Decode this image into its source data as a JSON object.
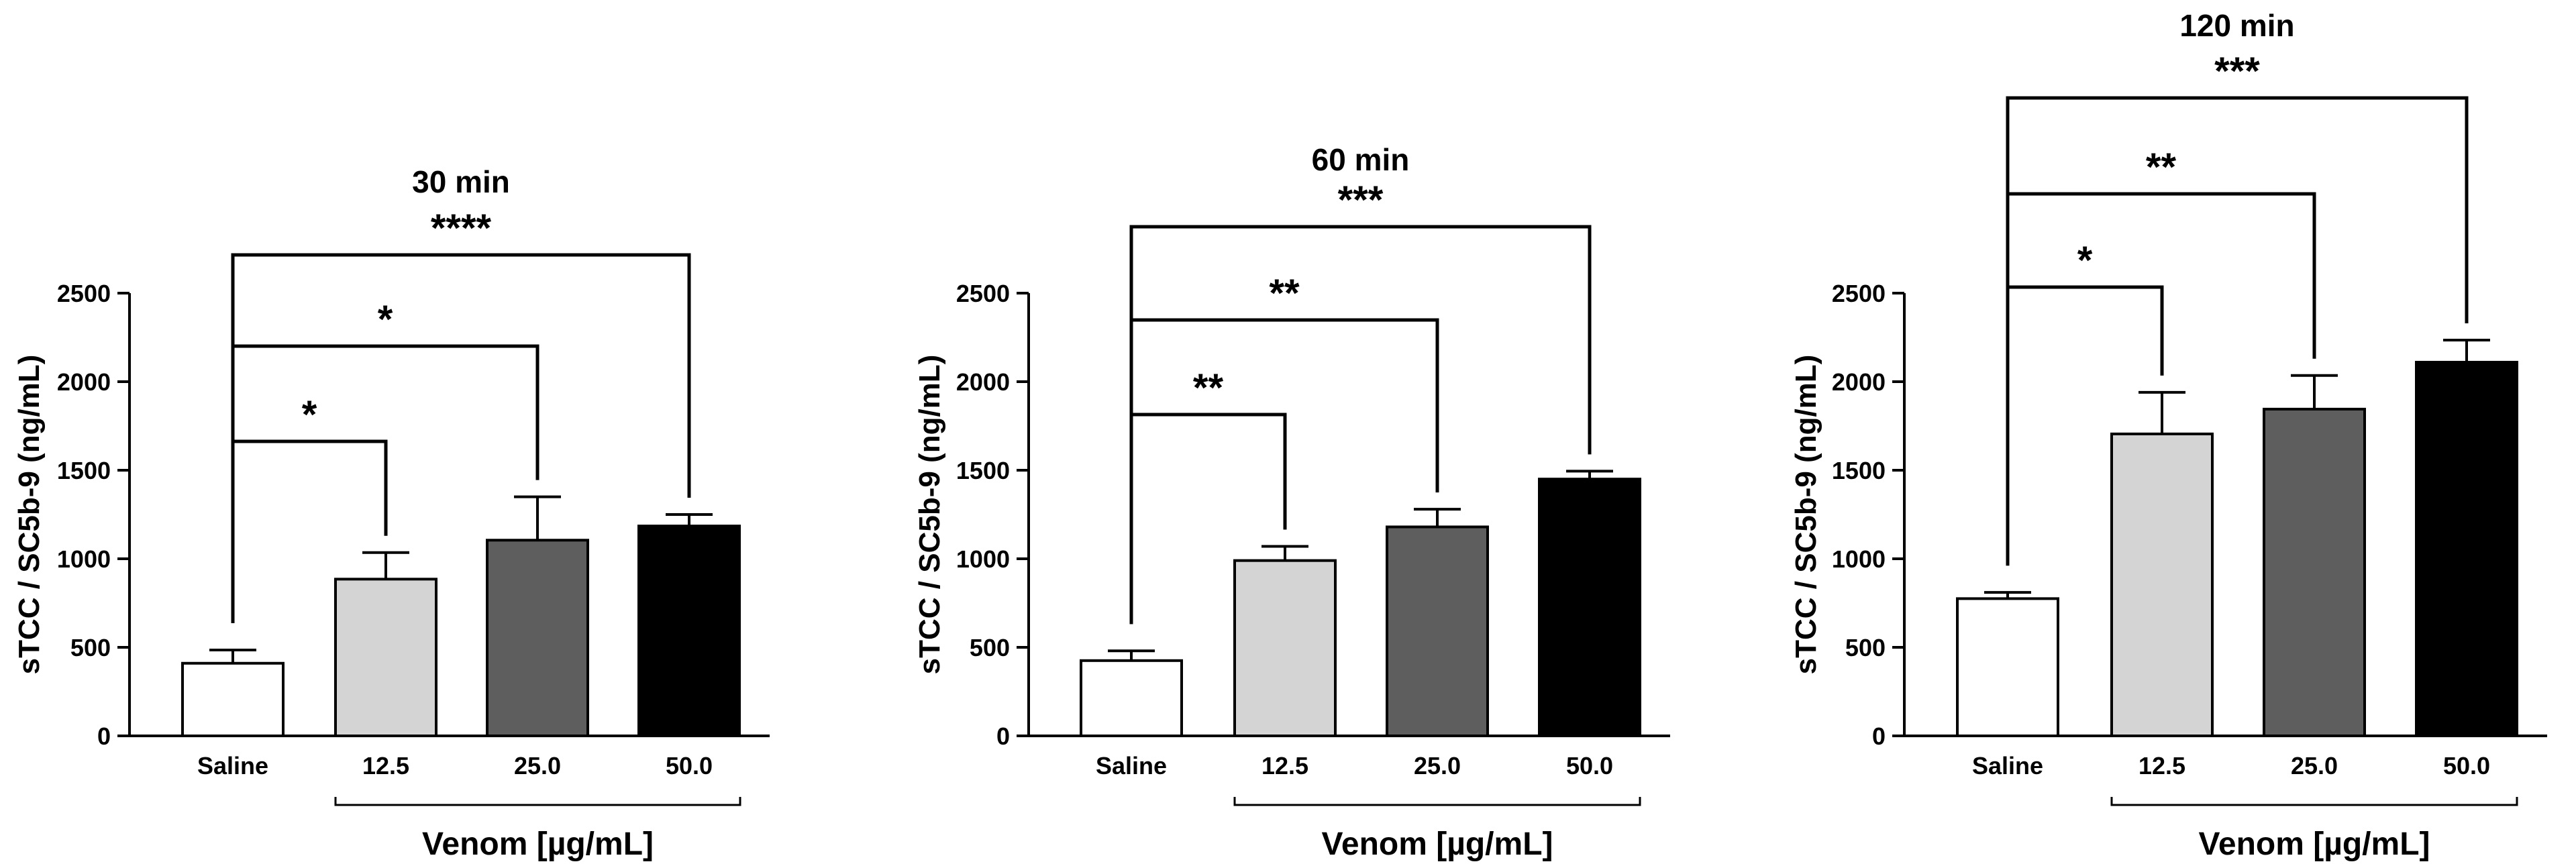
{
  "figure": {
    "shared_x_label": "Venom [µg/mL]"
  },
  "chart_data": [
    {
      "type": "bar",
      "title": "30 min",
      "ylabel": "sTCC / SC5b-9 (ng/mL)",
      "xlabel": "Venom [µg/mL]",
      "categories": [
        "Saline",
        "12.5",
        "25.0",
        "50.0"
      ],
      "values": [
        410,
        885,
        1105,
        1185
      ],
      "error": [
        75,
        150,
        245,
        65
      ],
      "ylim": [
        0,
        2500
      ],
      "yticks": [
        0,
        500,
        1000,
        1500,
        2000,
        2500
      ],
      "bar_colors": [
        "#ffffff",
        "#d4d4d4",
        "#5e5e5e",
        "#000000"
      ],
      "significance": [
        {
          "from": 0,
          "to": 1,
          "label": "*"
        },
        {
          "from": 0,
          "to": 2,
          "label": "*"
        },
        {
          "from": 0,
          "to": 3,
          "label": "****"
        }
      ]
    },
    {
      "type": "bar",
      "title": "60 min",
      "ylabel": "sTCC / SC5b-9 (ng/mL)",
      "xlabel": "Venom [µg/mL]",
      "categories": [
        "Saline",
        "12.5",
        "25.0",
        "50.0"
      ],
      "values": [
        425,
        990,
        1180,
        1450
      ],
      "error": [
        55,
        80,
        100,
        45
      ],
      "ylim": [
        0,
        2500
      ],
      "yticks": [
        0,
        500,
        1000,
        1500,
        2000,
        2500
      ],
      "bar_colors": [
        "#ffffff",
        "#d4d4d4",
        "#5e5e5e",
        "#000000"
      ],
      "significance": [
        {
          "from": 0,
          "to": 1,
          "label": "**"
        },
        {
          "from": 0,
          "to": 2,
          "label": "**"
        },
        {
          "from": 0,
          "to": 3,
          "label": "***"
        }
      ]
    },
    {
      "type": "bar",
      "title": "120 min",
      "ylabel": "sTCC / SC5b-9 (ng/mL)",
      "xlabel": "Venom [µg/mL]",
      "categories": [
        "Saline",
        "12.5",
        "25.0",
        "50.0"
      ],
      "values": [
        775,
        1705,
        1845,
        2110
      ],
      "error": [
        35,
        235,
        190,
        125
      ],
      "ylim": [
        0,
        2500
      ],
      "yticks": [
        0,
        500,
        1000,
        1500,
        2000,
        2500
      ],
      "bar_colors": [
        "#ffffff",
        "#d4d4d4",
        "#5e5e5e",
        "#000000"
      ],
      "significance": [
        {
          "from": 0,
          "to": 1,
          "label": "*"
        },
        {
          "from": 0,
          "to": 2,
          "label": "**"
        },
        {
          "from": 0,
          "to": 3,
          "label": "***"
        }
      ]
    }
  ]
}
